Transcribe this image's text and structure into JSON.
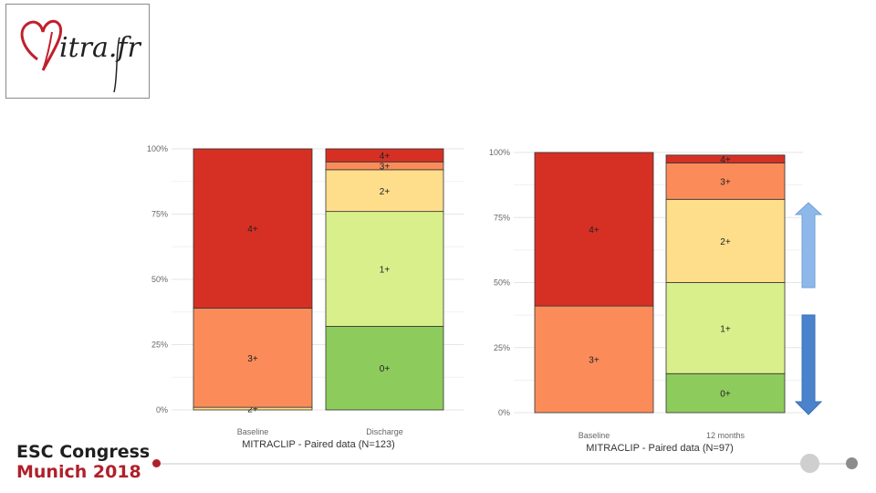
{
  "logo": {
    "text": "itra.fr"
  },
  "conference": {
    "line1": "ESC Congress",
    "line2": "Munich 2018"
  },
  "colors": {
    "4+": "#d63025",
    "3+": "#fb8c59",
    "2+": "#fedd8b",
    "1+": "#d9ef8b",
    "0+": "#8ecb5d",
    "accent_red": "#b0202a",
    "arrow_up": "#8fb8ea",
    "arrow_down": "#4a83cc"
  },
  "chart_data": [
    {
      "type": "bar",
      "stacked": true,
      "title": "",
      "xlabel": "MITRACLIP - Paired data (N=123)",
      "ylabel": "",
      "ylim": [
        0,
        100
      ],
      "yticks": [
        "0%",
        "25%",
        "50%",
        "75%",
        "100%"
      ],
      "categories": [
        "Baseline",
        "Discharge"
      ],
      "series": [
        {
          "name": "0+",
          "values": [
            0,
            32
          ]
        },
        {
          "name": "1+",
          "values": [
            0,
            44
          ]
        },
        {
          "name": "2+",
          "values": [
            1,
            16
          ]
        },
        {
          "name": "3+",
          "values": [
            38,
            3
          ]
        },
        {
          "name": "4+",
          "values": [
            61,
            5
          ]
        }
      ],
      "grid": true
    },
    {
      "type": "bar",
      "stacked": true,
      "title": "",
      "xlabel": "MITRACLIP - Paired data (N=97)",
      "ylabel": "",
      "ylim": [
        0,
        100
      ],
      "yticks": [
        "0%",
        "25%",
        "50%",
        "75%",
        "100%"
      ],
      "categories": [
        "Baseline",
        "12 months"
      ],
      "series": [
        {
          "name": "0+",
          "values": [
            0,
            15
          ]
        },
        {
          "name": "1+",
          "values": [
            0,
            35
          ]
        },
        {
          "name": "2+",
          "values": [
            0,
            32
          ]
        },
        {
          "name": "3+",
          "values": [
            41,
            14
          ]
        },
        {
          "name": "4+",
          "values": [
            59,
            3
          ]
        }
      ],
      "grid": true
    }
  ]
}
